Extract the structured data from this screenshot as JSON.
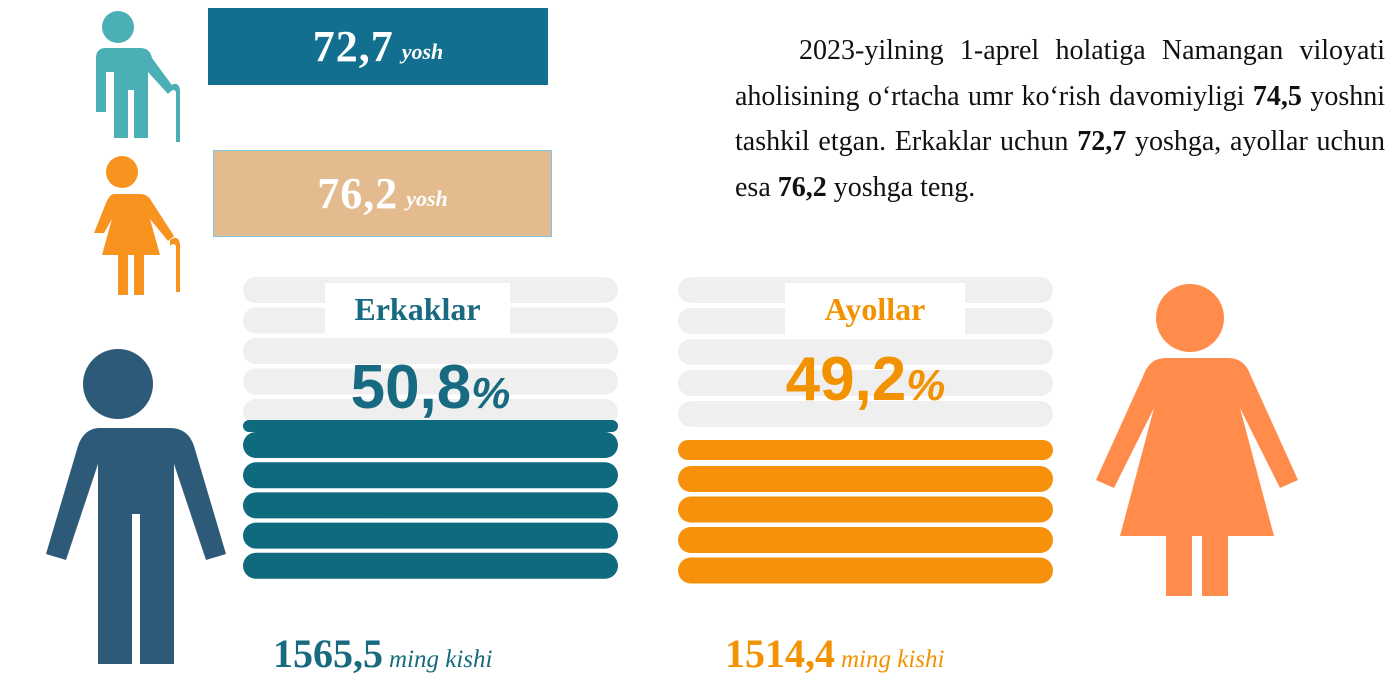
{
  "male_age": {
    "value": "72,7",
    "unit": "yosh"
  },
  "female_age": {
    "value": "76,2",
    "unit": "yosh"
  },
  "paragraph": [
    "2023-yilning 1-aprel holatiga Namangan viloyati aholisining oʻrtacha umr koʻrish davomiyligi ",
    "74,5",
    " yoshni tashkil etgan. Erkaklar uchun ",
    "72,7",
    " yoshga, ayollar uchun esa ",
    "76,2",
    " yoshga teng."
  ],
  "male": {
    "label": "Erkaklar",
    "share": "50,8",
    "share_unit": "%",
    "count": "1565,5",
    "count_unit": "ming kishi"
  },
  "female": {
    "label": "Ayollar",
    "share": "49,2",
    "share_unit": "%",
    "count": "1514,4",
    "count_unit": "ming kishi"
  }
}
